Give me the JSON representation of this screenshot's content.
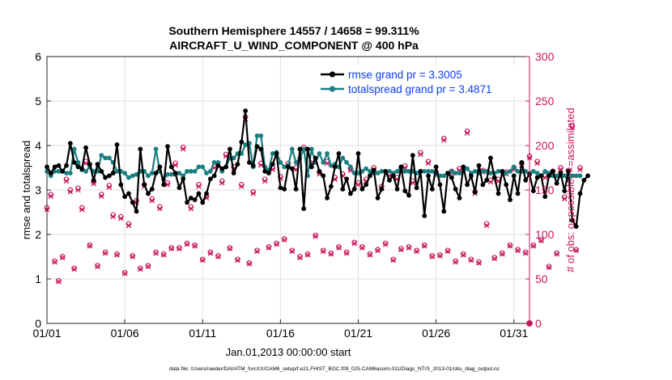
{
  "chart_data": {
    "type": "line",
    "title_line1": "Southern Hemisphere 14557 / 14658 = 99.311%",
    "title_line2": "AIRCRAFT_U_WIND_COMPONENT @ 400 hPa",
    "xlabel": "Jan.01,2013 00:00:00 start",
    "ylabel": "rmse and totalspread",
    "y2label": "# of obs: o=possible; ×=assimilated",
    "xlim": [
      0,
      31
    ],
    "ylim": [
      0,
      6
    ],
    "y2lim": [
      0,
      300
    ],
    "x_tick_labels": [
      "01/01",
      "01/06",
      "01/11",
      "01/16",
      "01/21",
      "01/26",
      "01/31"
    ],
    "x_tick_values": [
      0,
      5,
      10,
      15,
      20,
      25,
      30
    ],
    "y_ticks": [
      "0",
      "1",
      "2",
      "3",
      "4",
      "5",
      "6"
    ],
    "y2_ticks": [
      "0",
      "50",
      "100",
      "150",
      "200",
      "250",
      "300"
    ],
    "x_step_days": 0.25,
    "series": [
      {
        "name": "rmse",
        "legend": "rmse grand pr = 3.3005",
        "color": "#000000",
        "values": [
          3.52,
          3.38,
          3.52,
          3.55,
          3.42,
          3.55,
          4.05,
          3.62,
          3.52,
          3.48,
          3.95,
          3.58,
          3.22,
          3.58,
          3.42,
          3.28,
          3.32,
          3.38,
          4.02,
          3.12,
          2.85,
          2.92,
          2.72,
          2.52,
          3.92,
          3.12,
          2.92,
          3.02,
          3.38,
          3.52,
          3.12,
          3.98,
          3.52,
          3.38,
          3.05,
          3.25,
          2.72,
          2.82,
          2.78,
          2.92,
          2.72,
          2.92,
          3.25,
          3.32,
          3.55,
          3.48,
          3.52,
          3.92,
          3.38,
          3.58,
          4.08,
          4.78,
          3.62,
          3.55,
          3.98,
          3.92,
          3.42,
          3.38,
          3.58,
          3.82,
          3.05,
          3.02,
          3.52,
          3.48,
          3.02,
          3.92,
          2.58,
          3.92,
          3.52,
          3.72,
          3.42,
          3.32,
          2.82,
          3.08,
          3.52,
          3.82,
          3.02,
          3.25,
          2.92,
          3.02,
          3.82,
          3.02,
          3.12,
          3.32,
          3.45,
          2.82,
          3.02,
          3.42,
          3.22,
          3.32,
          3.02,
          3.52,
          2.98,
          2.88,
          3.78,
          3.05,
          3.42,
          2.42,
          3.32,
          3.02,
          3.52,
          3.12,
          2.52,
          3.38,
          3.28,
          3.02,
          2.82,
          3.52,
          3.12,
          3.32,
          2.95,
          3.55,
          3.12,
          3.22,
          3.72,
          3.28,
          2.92,
          3.42,
          3.12,
          2.78,
          3.32,
          2.92,
          3.62,
          3.22,
          3.35,
          2.98,
          3.28,
          3.32,
          2.85,
          3.32,
          3.42,
          3.15,
          3.38,
          2.98,
          3.42,
          2.32,
          2.18,
          2.92,
          3.22,
          3.32
        ]
      },
      {
        "name": "totalspread",
        "legend": "totalspread grand pr = 3.4871",
        "color": "#1a7f80",
        "values": [
          3.42,
          3.32,
          3.42,
          3.42,
          3.42,
          3.38,
          3.38,
          3.92,
          3.62,
          3.45,
          3.42,
          3.52,
          3.42,
          3.42,
          3.78,
          3.72,
          3.72,
          3.62,
          3.42,
          3.42,
          3.38,
          3.28,
          3.32,
          3.35,
          3.42,
          3.42,
          3.32,
          3.38,
          3.92,
          3.42,
          3.25,
          3.35,
          3.35,
          3.35,
          3.38,
          3.32,
          3.42,
          3.42,
          3.42,
          3.52,
          3.52,
          3.38,
          3.42,
          3.62,
          3.62,
          3.42,
          3.52,
          3.72,
          3.72,
          3.82,
          3.82,
          4.02,
          4.05,
          3.52,
          4.22,
          4.22,
          3.52,
          3.45,
          3.82,
          3.85,
          3.62,
          3.52,
          3.55,
          3.92,
          3.62,
          3.72,
          3.92,
          3.32,
          3.92,
          3.62,
          3.82,
          3.62,
          3.82,
          3.55,
          3.58,
          3.52,
          3.72,
          3.62,
          3.52,
          3.38,
          3.38,
          3.42,
          3.48,
          3.42,
          3.38,
          3.38,
          3.42,
          3.42,
          3.42,
          3.38,
          3.42,
          3.52,
          3.42,
          3.42,
          3.42,
          3.38,
          3.42,
          3.42,
          3.42,
          3.42,
          3.35,
          3.32,
          3.32,
          3.38,
          3.42,
          3.38,
          3.38,
          3.42,
          3.48,
          3.38,
          3.42,
          3.38,
          3.42,
          3.42,
          3.38,
          3.38,
          3.42,
          3.42,
          3.38,
          3.42,
          3.52,
          3.42,
          3.42,
          3.42,
          3.38,
          3.42,
          3.38,
          3.32,
          3.42,
          3.38,
          3.32,
          3.32,
          3.32,
          3.32,
          3.22,
          3.32,
          3.32,
          3.32
        ]
      },
      {
        "name": "nobs_possible",
        "color": "#c8165a",
        "marker": "circle",
        "axis": "right",
        "values": [
          130,
          145,
          70,
          48,
          75,
          162,
          150,
          62,
          152,
          130,
          182,
          88,
          159,
          65,
          145,
          80,
          155,
          122,
          78,
          120,
          57,
          112,
          76,
          138,
          62,
          156,
          65,
          140,
          80,
          131,
          78,
          158,
          85,
          180,
          85,
          198,
          90,
          131,
          88,
          156,
          72,
          143,
          80,
          177,
          76,
          160,
          190,
          85,
          176,
          72,
          156,
          232,
          68,
          148,
          82,
          180,
          162,
          86,
          175,
          90,
          165,
          95,
          180,
          82,
          175,
          75,
          198,
          78,
          180,
          99,
          170,
          82,
          182,
          79,
          164,
          86,
          168,
          80,
          174,
          91,
          158,
          86,
          162,
          78,
          175,
          83,
          154,
          90,
          168,
          72,
          164,
          84,
          177,
          86,
          160,
          82,
          192,
          88,
          182,
          76,
          170,
          77,
          208,
          82,
          171,
          70,
          174,
          78,
          216,
          72,
          148,
          69,
          172,
          112,
          161,
          74,
          162,
          79,
          170,
          88,
          175,
          83,
          180,
          80,
          188,
          88,
          182,
          94,
          166,
          64,
          171,
          79,
          175,
          142,
          172,
          222,
          83,
          175
        ]
      },
      {
        "name": "nobs_assimilated",
        "color": "#c8165a",
        "marker": "cross",
        "axis": "right",
        "values": [
          128,
          143,
          69,
          47,
          74,
          160,
          148,
          61,
          150,
          128,
          180,
          87,
          157,
          64,
          143,
          79,
          153,
          120,
          77,
          118,
          56,
          110,
          75,
          136,
          61,
          154,
          64,
          138,
          79,
          129,
          77,
          156,
          84,
          178,
          84,
          196,
          89,
          129,
          87,
          154,
          71,
          141,
          79,
          175,
          75,
          158,
          188,
          84,
          174,
          71,
          154,
          230,
          67,
          146,
          81,
          178,
          160,
          85,
          173,
          89,
          163,
          94,
          178,
          81,
          173,
          74,
          196,
          77,
          178,
          98,
          168,
          81,
          180,
          78,
          162,
          85,
          166,
          79,
          172,
          90,
          156,
          85,
          160,
          77,
          173,
          82,
          152,
          89,
          166,
          71,
          162,
          83,
          175,
          85,
          158,
          81,
          190,
          87,
          180,
          75,
          168,
          76,
          206,
          81,
          169,
          69,
          172,
          77,
          214,
          71,
          146,
          68,
          170,
          110,
          159,
          73,
          160,
          78,
          168,
          87,
          173,
          82,
          178,
          79,
          186,
          87,
          180,
          93,
          164,
          63,
          169,
          78,
          173,
          140,
          170,
          220,
          82,
          173
        ]
      }
    ]
  },
  "footer": "data file: /Users/raeder/DAI/ATM_forcXX/CAM6_setup/f.e21.FHIST_BGC.f09_025.CAM6assim.011/Diags_NTrS_2013-01/obs_diag_output.nc"
}
